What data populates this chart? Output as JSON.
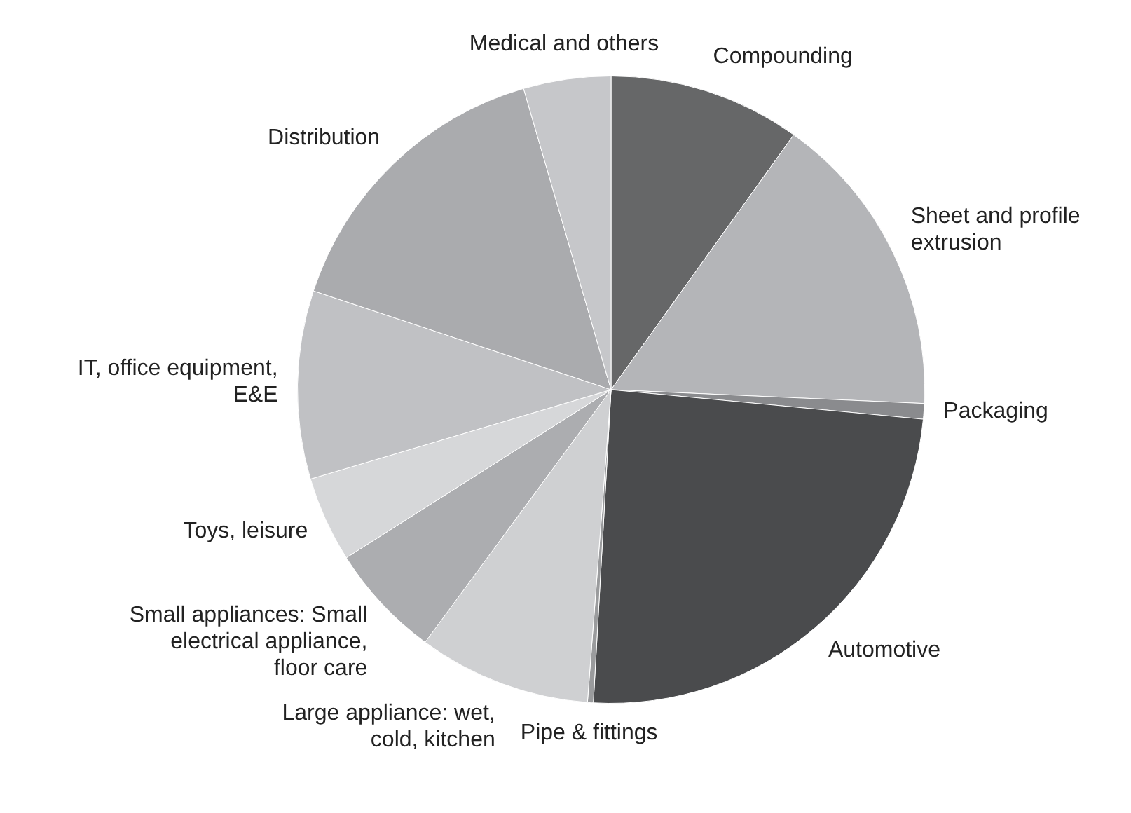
{
  "chart_data": {
    "type": "pie",
    "categories": [
      "Compounding",
      "Sheet and profile extrusion",
      "Packaging",
      "Automotive",
      "Pipe & fittings",
      "Large appliance: wet, cold, kitchen",
      "Small appliances: Small electrical appliance, floor care",
      "Toys, leisure",
      "IT, office equipment, E&E",
      "Distribution",
      "Medical and others"
    ],
    "values": [
      9.9,
      15.8,
      0.8,
      24.4,
      0.3,
      8.9,
      5.9,
      4.4,
      9.7,
      15.4,
      4.5
    ],
    "colors": [
      "#666768",
      "#b4b5b8",
      "#8a8b8e",
      "#4a4b4d",
      "#9a9b9d",
      "#cfd0d2",
      "#acadb0",
      "#d6d7d9",
      "#c0c1c4",
      "#aaabae",
      "#c6c7ca"
    ],
    "legend": false
  }
}
